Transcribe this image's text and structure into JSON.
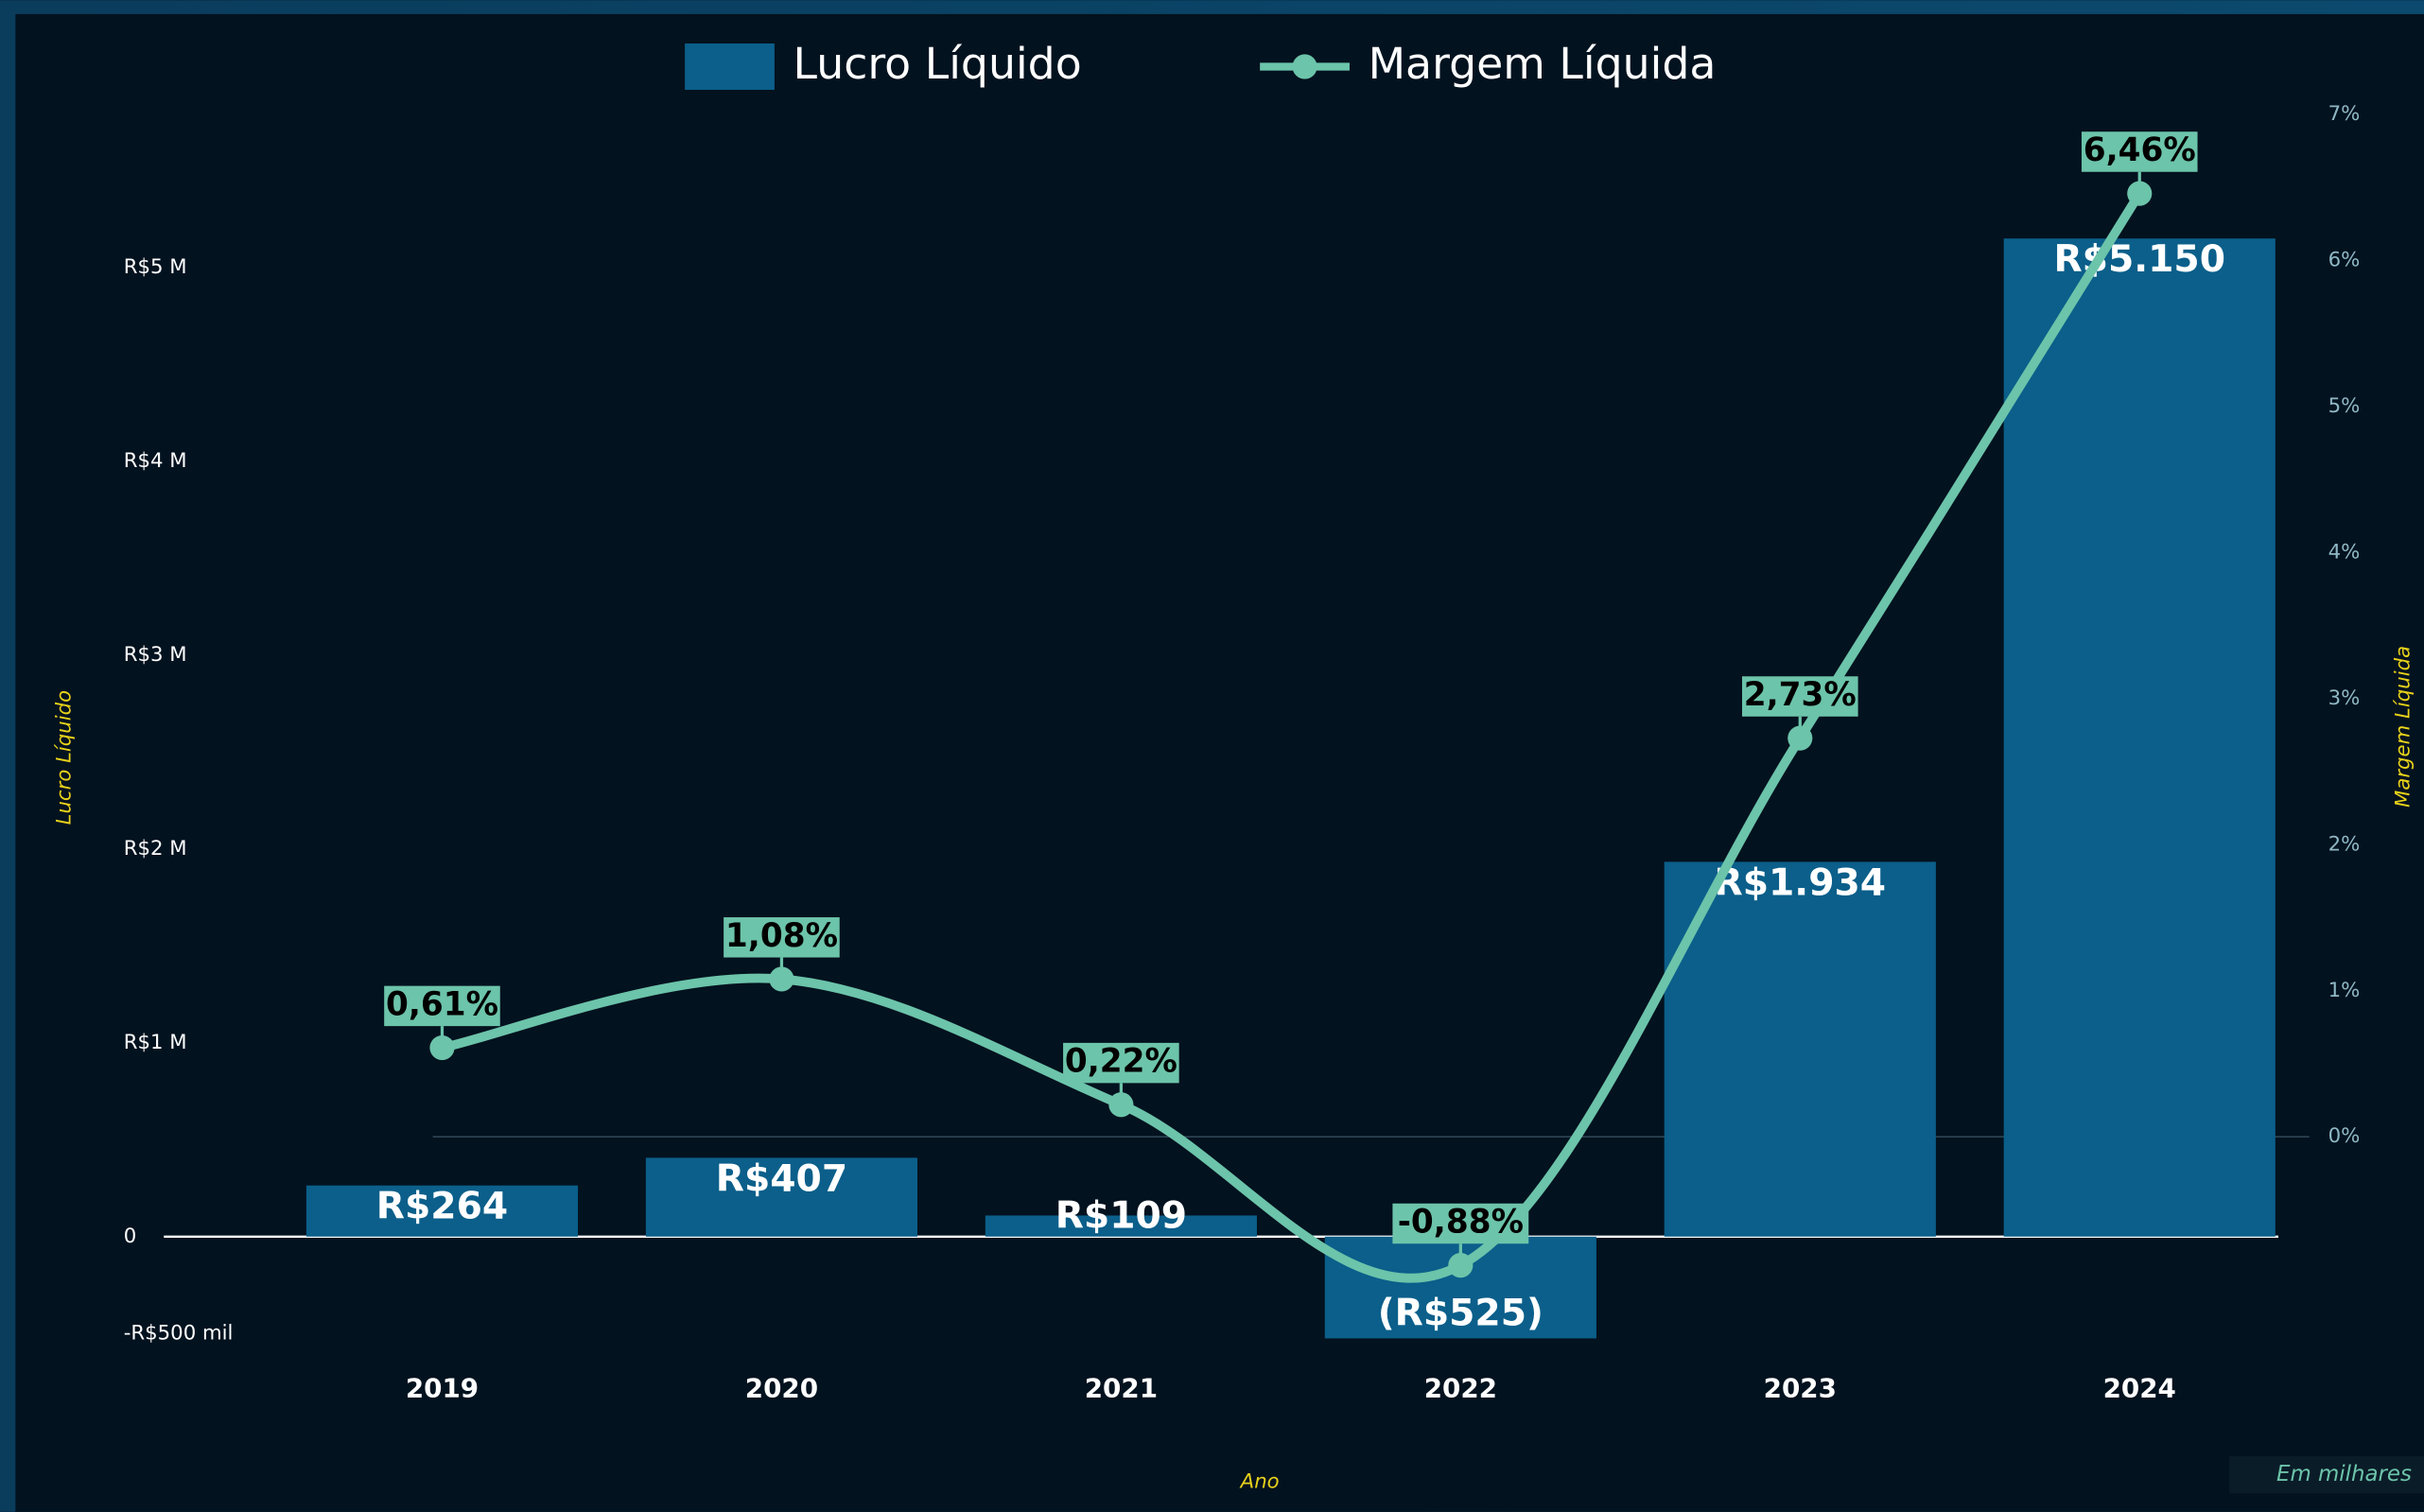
{
  "chart_data": {
    "type": "bar",
    "legend": "top",
    "categories": [
      "2019",
      "2020",
      "2021",
      "2022",
      "2023",
      "2024"
    ],
    "series": [
      {
        "name": "Lucro Líquido",
        "type": "bar",
        "color": "#0b5f8a",
        "values": [
          264,
          407,
          109,
          -525,
          1934,
          5150
        ],
        "value_labels": [
          "R$264",
          "R$407",
          "R$109",
          "(R$525)",
          "R$1.934",
          "R$5.150"
        ]
      },
      {
        "name": "Margem Líquida",
        "type": "line",
        "axis": "y2",
        "color": "#6cc4aa",
        "values": [
          0.61,
          1.08,
          0.22,
          -0.88,
          2.73,
          6.46
        ],
        "value_labels": [
          "0,61%",
          "1,08%",
          "0,22%",
          "-0,88%",
          "2,73%",
          "6,46%"
        ]
      }
    ],
    "ylabel": "Lucro Líquido",
    "y2label": "Margem Líquida",
    "xlabel": "Ano",
    "note": "Em milhares",
    "ylim": [
      -600,
      6000
    ],
    "yticks": [
      {
        "value": -500,
        "label": "-R$500 mil"
      },
      0,
      {
        "value": 1000,
        "label": "R$1 M"
      },
      {
        "value": 2000,
        "label": "R$2 M"
      },
      {
        "value": 3000,
        "label": "R$3 M"
      },
      {
        "value": 4000,
        "label": "R$4 M"
      },
      {
        "value": 5000,
        "label": "R$5 M"
      }
    ],
    "y2lim": [
      -1.48,
      7.28
    ],
    "y2ticks": [
      {
        "value": 0,
        "label": "0%"
      },
      {
        "value": 1,
        "label": "1%"
      },
      {
        "value": 2,
        "label": "2%"
      },
      {
        "value": 3,
        "label": "3%"
      },
      {
        "value": 4,
        "label": "4%"
      },
      {
        "value": 5,
        "label": "5%"
      },
      {
        "value": 6,
        "label": "6%"
      },
      {
        "value": 7,
        "label": "7%"
      }
    ]
  }
}
